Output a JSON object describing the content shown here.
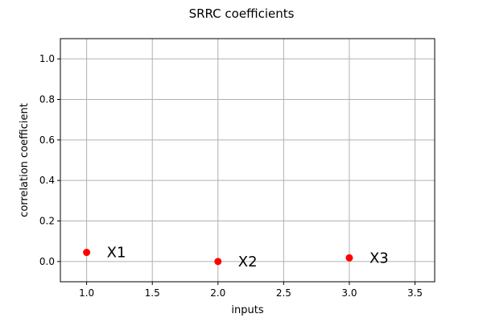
{
  "chart_data": {
    "type": "scatter",
    "title": "SRRC coefficients",
    "xlabel": "inputs",
    "ylabel": "correlation coefficient",
    "xlim": [
      0.8,
      3.65
    ],
    "ylim": [
      -0.1,
      1.1
    ],
    "xticks": [
      1.0,
      1.5,
      2.0,
      2.5,
      3.0,
      3.5
    ],
    "xtick_labels": [
      "1.0",
      "1.5",
      "2.0",
      "2.5",
      "3.0",
      "3.5"
    ],
    "yticks": [
      0.0,
      0.2,
      0.4,
      0.6,
      0.8,
      1.0
    ],
    "ytick_labels": [
      "0.0",
      "0.2",
      "0.4",
      "0.6",
      "0.8",
      "1.0"
    ],
    "grid": true,
    "point_color": "#ff0000",
    "points": [
      {
        "x": 1.0,
        "y": 0.045,
        "label": "X1"
      },
      {
        "x": 2.0,
        "y": 0.0,
        "label": "X2"
      },
      {
        "x": 3.0,
        "y": 0.018,
        "label": "X3"
      }
    ]
  }
}
